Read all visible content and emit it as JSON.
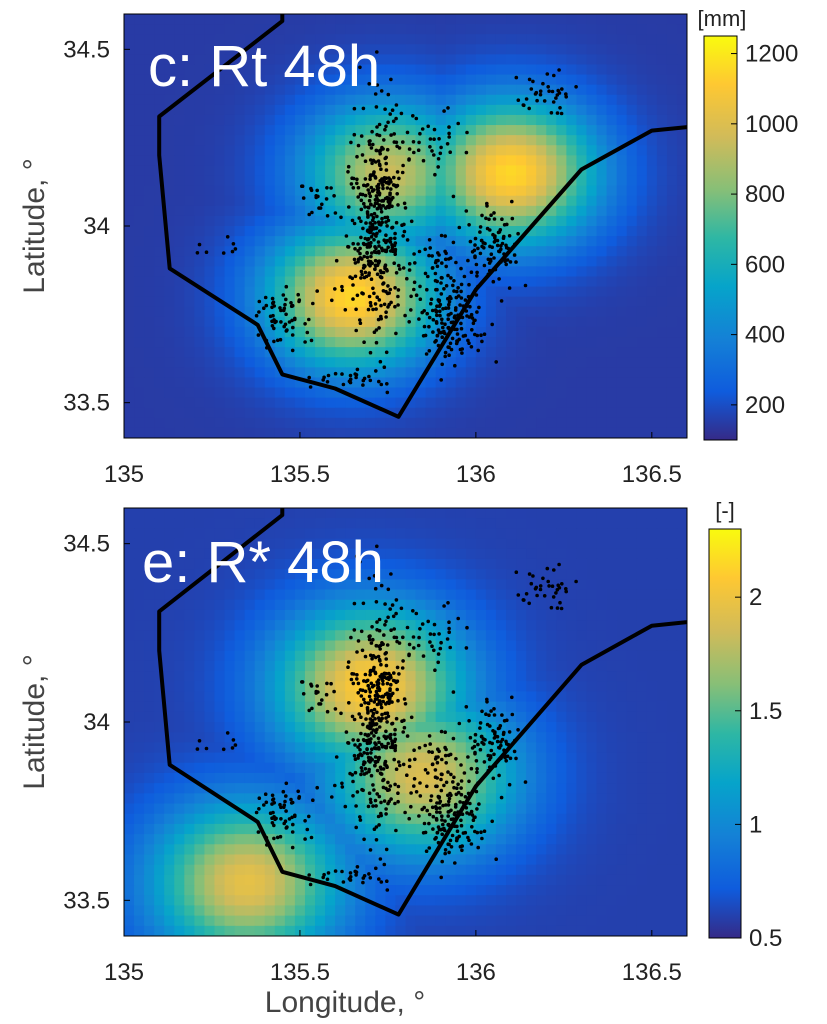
{
  "chart_data": [
    {
      "type": "heatmap",
      "title": "c: Rt 48h",
      "ylabel": "Latitude, °",
      "xlabel": "",
      "xlim": [
        135.0,
        136.6
      ],
      "ylim": [
        33.4,
        34.6
      ],
      "xticks": [
        135,
        135.5,
        136,
        136.5
      ],
      "xtick_labels": [
        "135",
        "135.5",
        "136",
        "136.5"
      ],
      "yticks": [
        33.5,
        34,
        34.5
      ],
      "ytick_labels": [
        "33.5",
        "34",
        "34.5"
      ],
      "colorbar": {
        "label": "[mm]",
        "min": 100,
        "max": 1250,
        "ticks": [
          200,
          400,
          600,
          800,
          1000,
          1200
        ],
        "tick_labels": [
          "200",
          "400",
          "600",
          "800",
          "1000",
          "1200"
        ],
        "colormap": "parula"
      },
      "field_peaks": [
        {
          "lon": 135.65,
          "lat": 33.8,
          "value": 1150
        },
        {
          "lon": 136.1,
          "lat": 34.15,
          "value": 1150
        },
        {
          "lon": 135.75,
          "lat": 34.15,
          "value": 950
        }
      ],
      "background_value": 150
    },
    {
      "type": "heatmap",
      "title": "e: R* 48h",
      "ylabel": "Latitude, °",
      "xlabel": "Longitude, °",
      "xlim": [
        135.0,
        136.6
      ],
      "ylim": [
        33.4,
        34.6
      ],
      "xticks": [
        135,
        135.5,
        136,
        136.5
      ],
      "xtick_labels": [
        "135",
        "135.5",
        "136",
        "136.5"
      ],
      "yticks": [
        33.5,
        34,
        34.5
      ],
      "ytick_labels": [
        "33.5",
        "34",
        "34.5"
      ],
      "colorbar": {
        "label": "[-]",
        "min": 0.5,
        "max": 2.3,
        "ticks": [
          0.5,
          1,
          1.5,
          2
        ],
        "tick_labels": [
          "0.5",
          "1",
          "1.5",
          "2"
        ],
        "colormap": "parula"
      },
      "field_peaks": [
        {
          "lon": 135.7,
          "lat": 34.1,
          "value": 2.1
        },
        {
          "lon": 135.35,
          "lat": 33.55,
          "value": 1.95
        },
        {
          "lon": 135.85,
          "lat": 33.85,
          "value": 1.9
        }
      ],
      "background_value": 0.6
    }
  ],
  "boundary": [
    [
      135.45,
      34.62
    ],
    [
      135.45,
      34.58
    ],
    [
      135.1,
      34.31
    ],
    [
      135.1,
      34.2
    ],
    [
      135.13,
      33.88
    ],
    [
      135.38,
      33.72
    ],
    [
      135.45,
      33.58
    ],
    [
      135.6,
      33.54
    ],
    [
      135.78,
      33.46
    ],
    [
      136.0,
      33.82
    ],
    [
      136.3,
      34.16
    ],
    [
      136.5,
      34.27
    ],
    [
      136.6,
      34.28
    ]
  ],
  "landslide_clusters": [
    {
      "lon": 135.72,
      "lat": 34.0,
      "sd_lon": 0.04,
      "sd_lat": 0.17,
      "n": 420
    },
    {
      "lon": 135.93,
      "lat": 33.73,
      "sd_lon": 0.05,
      "sd_lat": 0.06,
      "n": 150
    },
    {
      "lon": 136.05,
      "lat": 33.95,
      "sd_lon": 0.04,
      "sd_lat": 0.05,
      "n": 80
    },
    {
      "lon": 135.45,
      "lat": 33.74,
      "sd_lon": 0.04,
      "sd_lat": 0.04,
      "n": 60
    },
    {
      "lon": 136.2,
      "lat": 34.37,
      "sd_lon": 0.06,
      "sd_lat": 0.03,
      "n": 35
    },
    {
      "lon": 135.65,
      "lat": 33.56,
      "sd_lon": 0.06,
      "sd_lat": 0.02,
      "n": 25
    },
    {
      "lon": 135.85,
      "lat": 34.25,
      "sd_lon": 0.05,
      "sd_lat": 0.05,
      "n": 40
    },
    {
      "lon": 135.55,
      "lat": 34.08,
      "sd_lon": 0.04,
      "sd_lat": 0.03,
      "n": 20
    },
    {
      "lon": 135.9,
      "lat": 33.88,
      "sd_lon": 0.06,
      "sd_lat": 0.05,
      "n": 60
    },
    {
      "lon": 135.28,
      "lat": 33.94,
      "sd_lon": 0.05,
      "sd_lat": 0.02,
      "n": 8
    }
  ]
}
